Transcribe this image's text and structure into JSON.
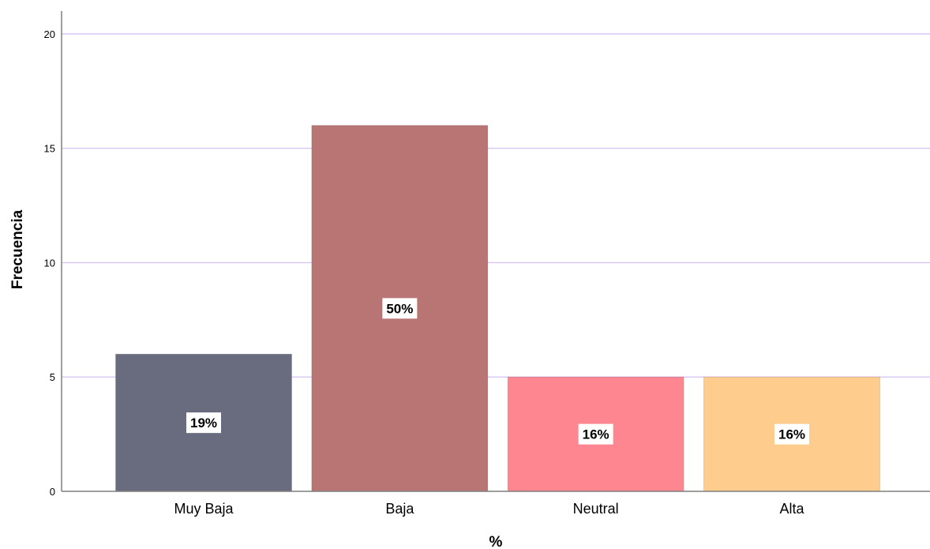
{
  "chart_data": {
    "type": "bar",
    "categories": [
      "Muy Baja",
      "Baja",
      "Neutral",
      "Alta"
    ],
    "values": [
      6,
      16,
      5,
      5
    ],
    "data_labels": [
      "19%",
      "50%",
      "16%",
      "16%"
    ],
    "colors": [
      "#686c7e",
      "#b97474",
      "#fd8690",
      "#fecc8c"
    ],
    "title": "",
    "xlabel": "%",
    "ylabel": "Frecuencia",
    "ylim": [
      0,
      21
    ],
    "yticks": [
      0,
      5,
      10,
      15,
      20
    ],
    "grid": true,
    "grid_color": "#d4c1f3",
    "axis_color": "#7f7f7f"
  }
}
